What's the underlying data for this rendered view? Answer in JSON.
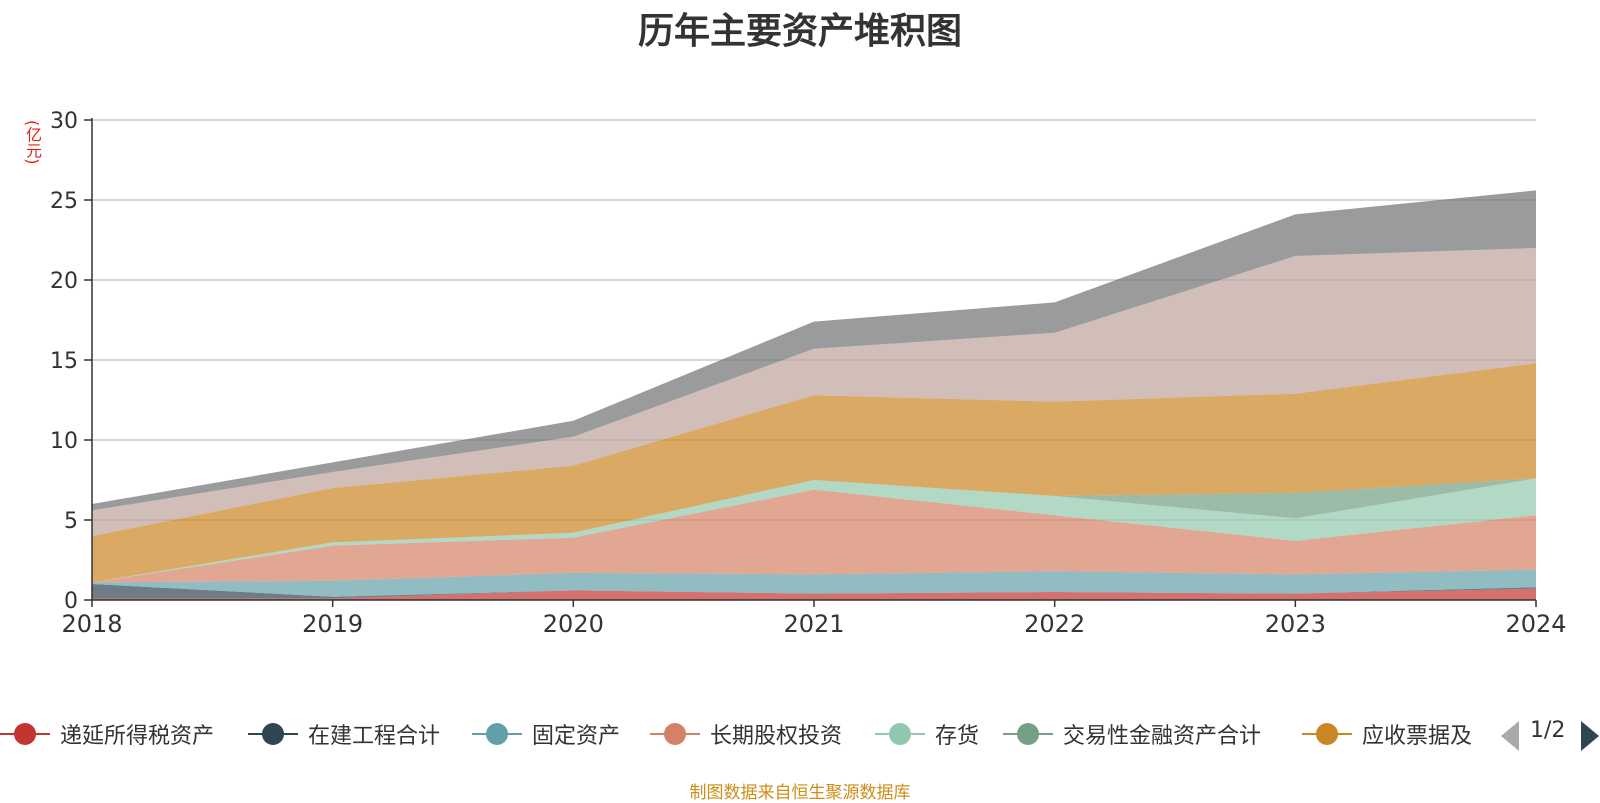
{
  "chart_data": {
    "type": "area",
    "stacked": true,
    "title": "历年主要资产堆积图",
    "unit_label": "(亿元)",
    "x": [
      "2018",
      "2019",
      "2020",
      "2021",
      "2022",
      "2023",
      "2024"
    ],
    "ylim": [
      0,
      30
    ],
    "yticks": [
      "0",
      "5",
      "10",
      "15",
      "20",
      "25",
      "30"
    ],
    "grid": true,
    "series": [
      {
        "name": "递延所得税资产",
        "color": "#c23531",
        "values": [
          0.1,
          0.1,
          0.6,
          0.4,
          0.5,
          0.4,
          0.7
        ]
      },
      {
        "name": "在建工程合计",
        "color": "#2f4554",
        "values": [
          0.9,
          0.1,
          0.0,
          0.0,
          0.0,
          0.0,
          0.1
        ]
      },
      {
        "name": "固定资产",
        "color": "#61a0a8",
        "values": [
          0.1,
          1.0,
          1.1,
          1.2,
          1.3,
          1.2,
          1.1
        ]
      },
      {
        "name": "长期股权投资",
        "color": "#d48265",
        "values": [
          0.0,
          2.2,
          2.2,
          5.3,
          3.5,
          2.1,
          3.4
        ]
      },
      {
        "name": "存货",
        "color": "#91c7ae",
        "values": [
          0.0,
          0.2,
          0.3,
          0.6,
          1.2,
          1.4,
          2.3
        ]
      },
      {
        "name": "交易性金融资产合计",
        "color": "#749f83",
        "values": [
          0.0,
          0.0,
          0.0,
          0.0,
          0.0,
          1.6,
          0.0
        ]
      },
      {
        "name": "应收票据及",
        "color": "#ca8622",
        "values": [
          2.9,
          3.4,
          4.2,
          5.3,
          5.9,
          6.2,
          7.2
        ]
      },
      {
        "name": "",
        "color": "#bda29a",
        "values": [
          1.6,
          1.0,
          1.8,
          2.9,
          4.3,
          8.6,
          7.2
        ]
      },
      {
        "name": "",
        "color": "#6e7074",
        "values": [
          0.4,
          0.6,
          1.0,
          1.7,
          1.9,
          2.6,
          3.6
        ]
      }
    ]
  },
  "pager": {
    "text": "1/2"
  },
  "source": "制图数据来自恒生聚源数据库"
}
